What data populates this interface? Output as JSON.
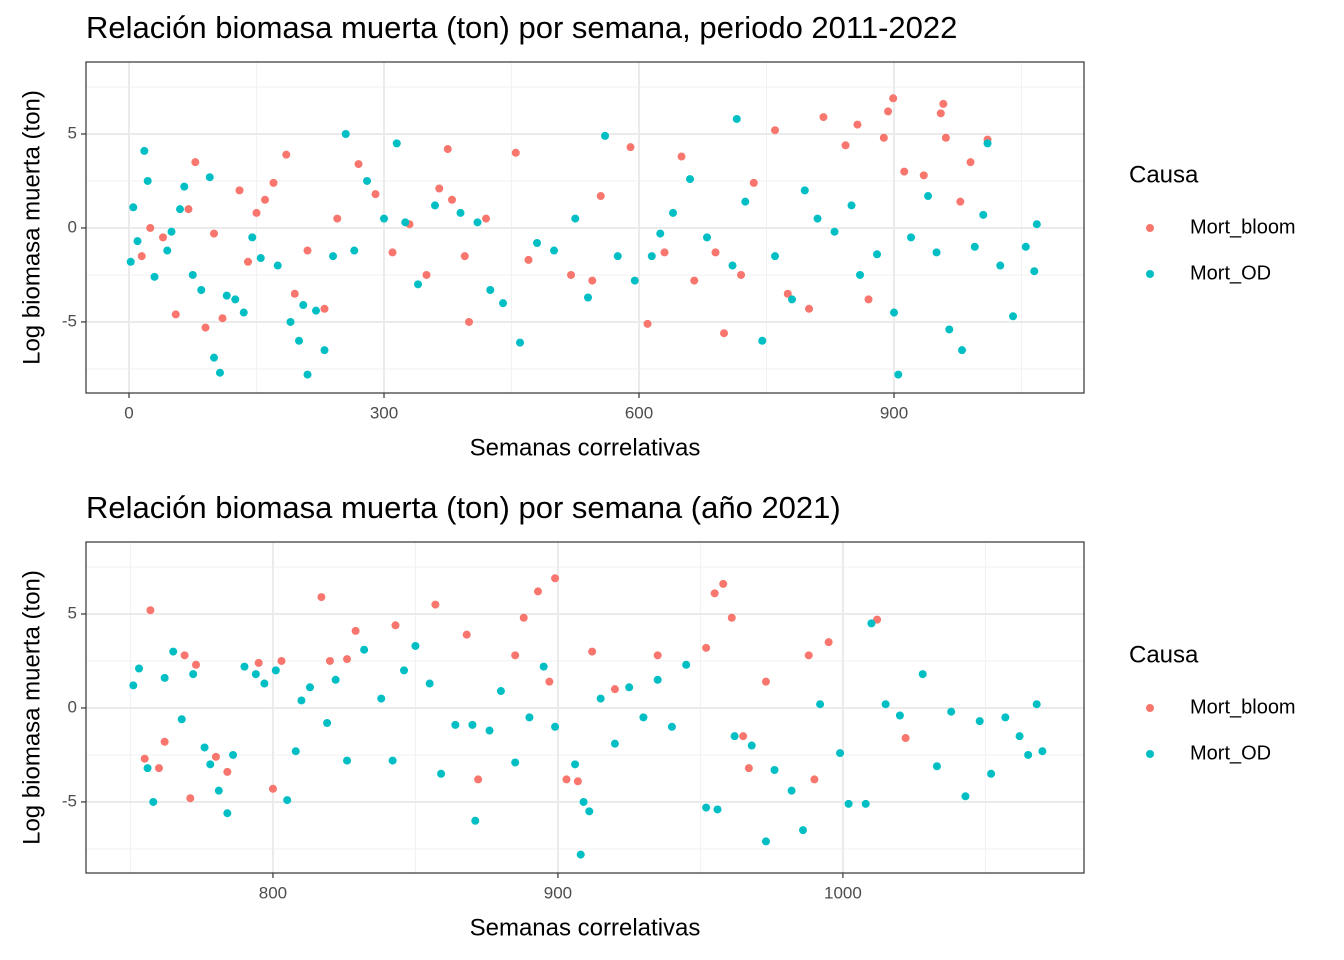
{
  "chart_data": [
    {
      "type": "scatter",
      "title": "Relación biomasa muerta (ton) por semana, periodo 2011-2022",
      "x_label": "Semanas correlativas",
      "y_label": "Log biomasa muerta (ton)",
      "legend_title": "Causa",
      "xlim": [
        -50.6,
        1123.5
      ],
      "ylim": [
        -8.78,
        8.83
      ],
      "xticks": [
        0,
        300,
        600,
        900
      ],
      "yticks": [
        -5,
        0,
        5
      ],
      "grid": true,
      "series": [
        {
          "name": "Mort_bloom",
          "color": "#F8766D",
          "x": [
            15,
            25,
            40,
            55,
            70,
            78,
            90,
            100,
            110,
            130,
            140,
            150,
            160,
            170,
            185,
            195,
            210,
            230,
            245,
            270,
            290,
            310,
            330,
            350,
            365,
            375,
            380,
            395,
            400,
            420,
            455,
            470,
            520,
            545,
            555,
            590,
            610,
            630,
            650,
            665,
            690,
            700,
            720,
            735,
            760,
            775,
            800,
            817,
            843,
            857,
            870,
            888,
            893,
            899,
            912,
            935,
            955,
            958,
            961,
            978,
            990,
            1010
          ],
          "values": [
            -1.5,
            0,
            -0.5,
            -4.6,
            1,
            3.5,
            -5.3,
            -0.3,
            -4.8,
            2,
            -1.8,
            0.8,
            1.5,
            2.4,
            3.9,
            -3.5,
            -1.2,
            -4.3,
            0.5,
            3.4,
            1.8,
            -1.3,
            0.2,
            -2.5,
            2.1,
            4.2,
            1.5,
            -1.5,
            -5,
            0.5,
            4,
            -1.7,
            -2.5,
            -2.8,
            1.7,
            4.3,
            -5.1,
            -1.3,
            3.8,
            -2.8,
            -1.3,
            -5.6,
            -2.5,
            2.4,
            5.2,
            -3.5,
            -4.3,
            5.9,
            4.4,
            5.5,
            -3.8,
            4.8,
            6.2,
            6.9,
            3,
            2.8,
            6.1,
            6.6,
            4.8,
            1.4,
            3.5,
            4.7
          ]
        },
        {
          "name": "Mort_OD",
          "color": "#00BFC4",
          "x": [
            2,
            5,
            10,
            18,
            22,
            30,
            45,
            50,
            60,
            65,
            75,
            85,
            95,
            100,
            107,
            115,
            125,
            135,
            145,
            155,
            175,
            190,
            200,
            205,
            210,
            220,
            230,
            240,
            255,
            265,
            280,
            300,
            315,
            325,
            340,
            360,
            390,
            410,
            425,
            440,
            460,
            480,
            500,
            525,
            540,
            560,
            575,
            595,
            615,
            625,
            640,
            660,
            680,
            710,
            715,
            725,
            745,
            760,
            780,
            795,
            810,
            830,
            850,
            860,
            880,
            900,
            905,
            920,
            940,
            950,
            965,
            980,
            995,
            1005,
            1010,
            1025,
            1040,
            1055,
            1065,
            1068
          ],
          "values": [
            -1.8,
            1.1,
            -0.7,
            4.1,
            2.5,
            -2.6,
            -1.2,
            -0.2,
            1,
            2.2,
            -2.5,
            -3.3,
            2.7,
            -6.9,
            -7.7,
            -3.6,
            -3.8,
            -4.5,
            -0.5,
            -1.6,
            -2,
            -5,
            -6,
            -4.1,
            -7.8,
            -4.4,
            -6.5,
            -1.5,
            5,
            -1.2,
            2.5,
            0.5,
            4.5,
            0.3,
            -3,
            1.2,
            0.8,
            0.3,
            -3.3,
            -4,
            -6.1,
            -0.8,
            -1.2,
            0.5,
            -3.7,
            4.9,
            -1.5,
            -2.8,
            -1.5,
            -0.3,
            0.8,
            2.6,
            -0.5,
            -2,
            5.8,
            1.4,
            -6,
            -1.5,
            -3.8,
            2,
            0.5,
            -0.2,
            1.2,
            -2.5,
            -1.4,
            -4.5,
            -7.8,
            -0.5,
            1.7,
            -1.3,
            -5.4,
            -6.5,
            -1,
            0.7,
            4.5,
            -2,
            -4.7,
            -1,
            -2.3,
            0.2
          ]
        }
      ]
    },
    {
      "type": "scatter",
      "title": "Relación biomasa muerta (ton) por semana (año 2021)",
      "x_label": "Semanas correlativas",
      "y_label": "Log biomasa muerta (ton)",
      "legend_title": "Causa",
      "xlim": [
        734.4,
        1084.6
      ],
      "ylim": [
        -8.78,
        8.83
      ],
      "xticks": [
        800,
        900,
        1000
      ],
      "yticks": [
        -5,
        0,
        5
      ],
      "grid": true,
      "series": [
        {
          "name": "Mort_bloom",
          "color": "#F8766D",
          "x": [
            755,
            757,
            760,
            762,
            769,
            771,
            773,
            780,
            784,
            795,
            800,
            803,
            817,
            820,
            826,
            829,
            843,
            857,
            868,
            872,
            885,
            888,
            893,
            897,
            899,
            903,
            907,
            912,
            920,
            935,
            952,
            955,
            958,
            961,
            965,
            967,
            973,
            988,
            990,
            995,
            1012,
            1022
          ],
          "values": [
            -2.7,
            5.2,
            -3.2,
            -1.8,
            2.8,
            -4.8,
            2.3,
            -2.6,
            -3.4,
            2.4,
            -4.3,
            2.5,
            5.9,
            2.5,
            2.6,
            4.1,
            4.4,
            5.5,
            3.9,
            -3.8,
            2.8,
            4.8,
            6.2,
            1.4,
            6.9,
            -3.8,
            -3.9,
            3,
            1,
            2.8,
            3.2,
            6.1,
            6.6,
            4.8,
            -1.5,
            -3.2,
            1.4,
            2.8,
            -3.8,
            3.5,
            4.7,
            -1.6
          ]
        },
        {
          "name": "Mort_OD",
          "color": "#00BFC4",
          "x": [
            751,
            753,
            756,
            758,
            762,
            765,
            768,
            772,
            776,
            778,
            781,
            784,
            786,
            790,
            794,
            797,
            801,
            805,
            808,
            810,
            813,
            819,
            822,
            826,
            832,
            838,
            842,
            846,
            850,
            855,
            859,
            864,
            870,
            871,
            876,
            880,
            885,
            890,
            895,
            899,
            906,
            909,
            911,
            908,
            915,
            920,
            925,
            930,
            935,
            940,
            945,
            952,
            956,
            962,
            968,
            973,
            976,
            982,
            986,
            992,
            999,
            1002,
            1008,
            1010,
            1015,
            1020,
            1028,
            1033,
            1038,
            1043,
            1048,
            1052,
            1057,
            1062,
            1065,
            1068,
            1070
          ],
          "values": [
            1.2,
            2.1,
            -3.2,
            -5,
            1.6,
            3,
            -0.6,
            1.8,
            -2.1,
            -3,
            -4.4,
            -5.6,
            -2.5,
            2.2,
            1.8,
            1.3,
            2,
            -4.9,
            -2.3,
            0.4,
            1.1,
            -0.8,
            1.5,
            -2.8,
            3.1,
            0.5,
            -2.8,
            2,
            3.3,
            1.3,
            -3.5,
            -0.9,
            -0.9,
            -6,
            -1.2,
            0.9,
            -2.9,
            -0.5,
            2.2,
            -1,
            -3,
            -5,
            -5.5,
            -7.8,
            0.5,
            -1.9,
            1.1,
            -0.5,
            1.5,
            -1,
            2.3,
            -5.3,
            -5.4,
            -1.5,
            -2,
            -7.1,
            -3.3,
            -4.4,
            -6.5,
            0.2,
            -2.4,
            -5.1,
            -5.1,
            4.5,
            0.2,
            -0.4,
            1.8,
            -3.1,
            -0.2,
            -4.7,
            -0.7,
            -3.5,
            -0.5,
            -1.5,
            -2.5,
            0.2,
            -2.3
          ]
        }
      ]
    }
  ]
}
